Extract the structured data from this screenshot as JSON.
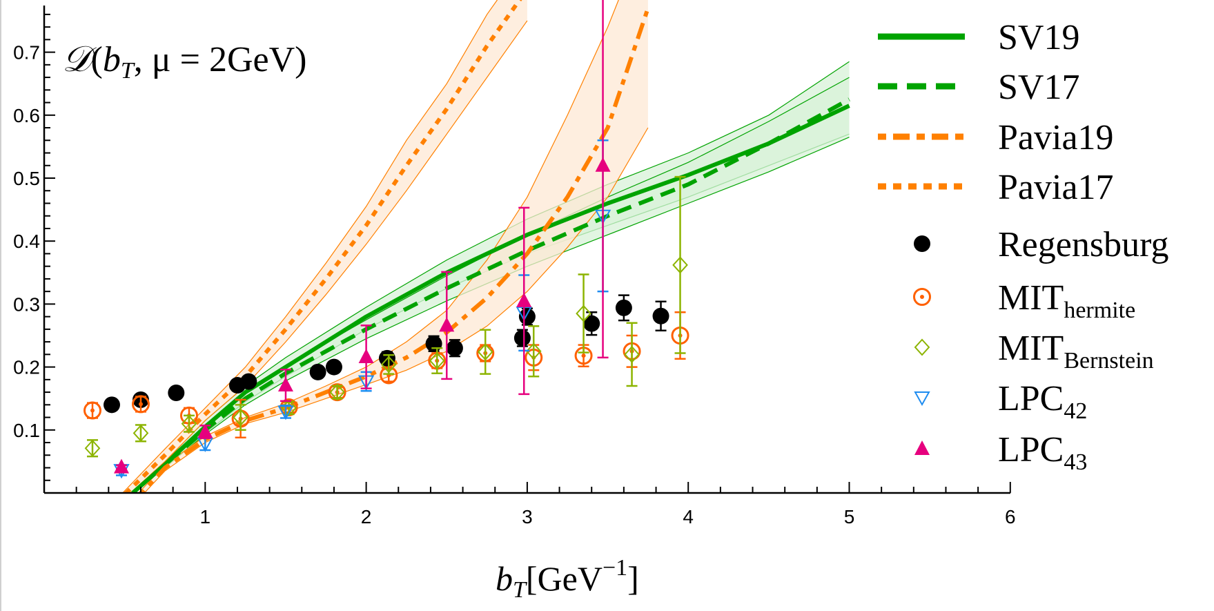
{
  "chart_data": {
    "type": "scatter",
    "title": "D(b_T, μ = 2GeV)",
    "title_parts": {
      "func": "𝒟",
      "open": "(",
      "var": "b",
      "var_sub": "T",
      "sep": ", μ = 2GeV)"
    },
    "xlabel": "b_T[GeV^-1]",
    "xlabel_parts": {
      "var": "b",
      "sub": "T",
      "unit": "[GeV",
      "sup": "−1",
      "close": "]"
    },
    "ylabel": "",
    "xlim": [
      0,
      6
    ],
    "ylim": [
      0,
      0.77
    ],
    "x_ticks": [
      1,
      2,
      3,
      4,
      5,
      6
    ],
    "x_tick_labels": [
      "1",
      "2",
      "3",
      "4",
      "5",
      "6"
    ],
    "y_ticks": [
      0.1,
      0.2,
      0.3,
      0.4,
      0.5,
      0.6,
      0.7
    ],
    "y_tick_labels": [
      "0.1",
      "0.2",
      "0.3",
      "0.4",
      "0.5",
      "0.6",
      "0.7"
    ],
    "grid": false,
    "legend_position": "right",
    "curves": [
      {
        "name": "SV19",
        "color": "#00a300",
        "style": "solid",
        "x": [
          0.55,
          0.75,
          1.0,
          1.25,
          1.5,
          2.0,
          2.5,
          3.0,
          3.5,
          4.0,
          4.5,
          5.0
        ],
        "y": [
          0.0,
          0.045,
          0.105,
          0.16,
          0.2,
          0.28,
          0.35,
          0.41,
          0.46,
          0.505,
          0.555,
          0.615
        ],
        "band_low": [
          0.0,
          0.04,
          0.095,
          0.145,
          0.185,
          0.26,
          0.325,
          0.38,
          0.425,
          0.47,
          0.52,
          0.57
        ],
        "band_high": [
          0.0,
          0.05,
          0.115,
          0.17,
          0.215,
          0.295,
          0.37,
          0.435,
          0.49,
          0.54,
          0.6,
          0.685
        ]
      },
      {
        "name": "SV17",
        "color": "#00a300",
        "style": "dashed",
        "x": [
          0.55,
          0.75,
          1.0,
          1.25,
          1.5,
          2.0,
          2.5,
          3.0,
          3.5,
          4.0,
          4.5,
          5.0
        ],
        "y": [
          0.0,
          0.045,
          0.1,
          0.15,
          0.19,
          0.26,
          0.325,
          0.385,
          0.44,
          0.49,
          0.555,
          0.625
        ],
        "band_low": [
          0.0,
          0.04,
          0.093,
          0.14,
          0.178,
          0.245,
          0.305,
          0.36,
          0.41,
          0.46,
          0.51,
          0.565
        ],
        "band_high": [
          0.0,
          0.05,
          0.108,
          0.16,
          0.202,
          0.275,
          0.345,
          0.41,
          0.47,
          0.525,
          0.59,
          0.66
        ]
      },
      {
        "name": "Pavia19",
        "color": "#ff8000",
        "style": "dashdot",
        "x": [
          0.55,
          0.75,
          1.0,
          1.25,
          1.5,
          1.75,
          2.0,
          2.25,
          2.5,
          2.75,
          3.0,
          3.25,
          3.5,
          3.75
        ],
        "y": [
          -0.015,
          0.04,
          0.085,
          0.115,
          0.135,
          0.16,
          0.185,
          0.215,
          0.255,
          0.31,
          0.38,
          0.47,
          0.58,
          0.77
        ],
        "band_low": [
          -0.02,
          0.035,
          0.08,
          0.11,
          0.128,
          0.15,
          0.172,
          0.195,
          0.225,
          0.265,
          0.32,
          0.39,
          0.47,
          0.58
        ],
        "band_high": [
          -0.01,
          0.045,
          0.09,
          0.12,
          0.142,
          0.17,
          0.2,
          0.24,
          0.29,
          0.37,
          0.47,
          0.6,
          0.74,
          0.9
        ]
      },
      {
        "name": "Pavia17",
        "color": "#ff8000",
        "style": "dotted",
        "x": [
          0.45,
          0.75,
          1.0,
          1.25,
          1.5,
          1.75,
          2.0,
          2.25,
          2.5,
          2.75,
          3.0
        ],
        "y": [
          -0.015,
          0.06,
          0.125,
          0.185,
          0.26,
          0.34,
          0.425,
          0.52,
          0.61,
          0.71,
          0.8
        ],
        "band_low": [
          -0.02,
          0.05,
          0.115,
          0.17,
          0.24,
          0.315,
          0.395,
          0.48,
          0.57,
          0.66,
          0.75
        ],
        "band_high": [
          -0.01,
          0.07,
          0.135,
          0.2,
          0.28,
          0.365,
          0.455,
          0.56,
          0.65,
          0.76,
          0.85
        ]
      }
    ],
    "datasets": [
      {
        "name": "Regensburg",
        "color": "#000000",
        "marker": "filled-circle",
        "points": [
          {
            "x": 0.42,
            "y": 0.14,
            "err": 0.004
          },
          {
            "x": 0.6,
            "y": 0.148,
            "err": 0.008
          },
          {
            "x": 0.82,
            "y": 0.159,
            "err": 0.005
          },
          {
            "x": 1.2,
            "y": 0.171,
            "err": 0.006
          },
          {
            "x": 1.27,
            "y": 0.177,
            "err": 0.007
          },
          {
            "x": 1.7,
            "y": 0.192,
            "err": 0.005
          },
          {
            "x": 1.8,
            "y": 0.2,
            "err": 0.005
          },
          {
            "x": 2.13,
            "y": 0.214,
            "err": 0.01
          },
          {
            "x": 2.42,
            "y": 0.237,
            "err": 0.012
          },
          {
            "x": 2.55,
            "y": 0.23,
            "err": 0.013
          },
          {
            "x": 2.97,
            "y": 0.246,
            "err": 0.013
          },
          {
            "x": 3.0,
            "y": 0.28,
            "err": 0.013
          },
          {
            "x": 3.4,
            "y": 0.269,
            "err": 0.018
          },
          {
            "x": 3.6,
            "y": 0.294,
            "err": 0.02
          },
          {
            "x": 3.83,
            "y": 0.281,
            "err": 0.023
          }
        ]
      },
      {
        "name": "MIT",
        "sub": "hermite",
        "color": "#ff6000",
        "marker": "circle-dot",
        "points": [
          {
            "x": 0.3,
            "y": 0.131,
            "err": 0.012
          },
          {
            "x": 0.6,
            "y": 0.141,
            "err": 0.012
          },
          {
            "x": 0.9,
            "y": 0.123,
            "err": 0.012
          },
          {
            "x": 1.22,
            "y": 0.118,
            "err": 0.03
          },
          {
            "x": 1.52,
            "y": 0.136,
            "err": 0.008
          },
          {
            "x": 1.82,
            "y": 0.16,
            "err": 0.009
          },
          {
            "x": 2.14,
            "y": 0.187,
            "err": 0.01
          },
          {
            "x": 2.44,
            "y": 0.21,
            "err": 0.012
          },
          {
            "x": 2.74,
            "y": 0.222,
            "err": 0.013
          },
          {
            "x": 3.04,
            "y": 0.215,
            "err": 0.02
          },
          {
            "x": 3.35,
            "y": 0.218,
            "err": 0.017
          },
          {
            "x": 3.65,
            "y": 0.225,
            "err": 0.025
          },
          {
            "x": 3.95,
            "y": 0.25,
            "err": 0.037
          }
        ]
      },
      {
        "name": "MIT",
        "sub": "Bernstein",
        "color": "#8cb400",
        "marker": "open-diamond",
        "points": [
          {
            "x": 0.3,
            "y": 0.071,
            "err": 0.013
          },
          {
            "x": 0.6,
            "y": 0.095,
            "err": 0.013
          },
          {
            "x": 0.9,
            "y": 0.11,
            "err": 0.013
          },
          {
            "x": 1.22,
            "y": 0.12,
            "err": 0.02
          },
          {
            "x": 1.52,
            "y": 0.135,
            "err": 0.01
          },
          {
            "x": 1.82,
            "y": 0.16,
            "err": 0.01
          },
          {
            "x": 2.14,
            "y": 0.204,
            "err": 0.015
          },
          {
            "x": 2.44,
            "y": 0.21,
            "err": 0.02
          },
          {
            "x": 2.74,
            "y": 0.224,
            "err": 0.035
          },
          {
            "x": 3.04,
            "y": 0.225,
            "err": 0.04
          },
          {
            "x": 3.35,
            "y": 0.285,
            "err": 0.062
          },
          {
            "x": 3.65,
            "y": 0.22,
            "err": 0.05
          },
          {
            "x": 3.95,
            "y": 0.362,
            "err": 0.14
          }
        ]
      },
      {
        "name": "LPC",
        "sub": "42",
        "color": "#1e8cf0",
        "marker": "open-triangle-down",
        "points": [
          {
            "x": 0.48,
            "y": 0.036,
            "err": 0.008
          },
          {
            "x": 1.0,
            "y": 0.078,
            "err": 0.01
          },
          {
            "x": 1.5,
            "y": 0.129,
            "err": 0.01
          },
          {
            "x": 2.0,
            "y": 0.177,
            "err": 0.015
          },
          {
            "x": 2.98,
            "y": 0.286,
            "err": 0.06
          },
          {
            "x": 3.47,
            "y": 0.44,
            "err": 0.12
          }
        ]
      },
      {
        "name": "LPC",
        "sub": "43",
        "color": "#e6007e",
        "marker": "filled-triangle-up",
        "points": [
          {
            "x": 0.48,
            "y": 0.041,
            "err": 0.003
          },
          {
            "x": 1.0,
            "y": 0.097,
            "err": 0.01
          },
          {
            "x": 1.5,
            "y": 0.171,
            "err": 0.025
          },
          {
            "x": 2.0,
            "y": 0.216,
            "err": 0.05
          },
          {
            "x": 2.5,
            "y": 0.266,
            "err": 0.085
          },
          {
            "x": 2.98,
            "y": 0.305,
            "err": 0.148
          },
          {
            "x": 3.47,
            "y": 0.52,
            "err": 0.305
          }
        ]
      }
    ]
  }
}
